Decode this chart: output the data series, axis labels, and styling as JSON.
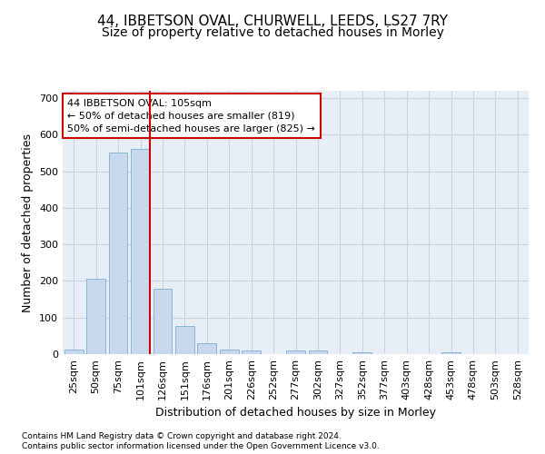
{
  "title1": "44, IBBETSON OVAL, CHURWELL, LEEDS, LS27 7RY",
  "title2": "Size of property relative to detached houses in Morley",
  "xlabel": "Distribution of detached houses by size in Morley",
  "ylabel": "Number of detached properties",
  "categories": [
    "25sqm",
    "50sqm",
    "75sqm",
    "101sqm",
    "126sqm",
    "151sqm",
    "176sqm",
    "201sqm",
    "226sqm",
    "252sqm",
    "277sqm",
    "302sqm",
    "327sqm",
    "352sqm",
    "377sqm",
    "403sqm",
    "428sqm",
    "453sqm",
    "478sqm",
    "503sqm",
    "528sqm"
  ],
  "values": [
    13,
    205,
    550,
    560,
    178,
    78,
    29,
    13,
    10,
    0,
    9,
    9,
    0,
    6,
    0,
    0,
    0,
    5,
    0,
    0,
    0
  ],
  "bar_color": "#c9d9ed",
  "bar_edge_color": "#7bafd4",
  "grid_color": "#c8d4e3",
  "bg_color": "#e8eef5",
  "annotation_line1": "44 IBBETSON OVAL: 105sqm",
  "annotation_line2": "← 50% of detached houses are smaller (819)",
  "annotation_line3": "50% of semi-detached houses are larger (825) →",
  "vline_color": "#cc0000",
  "box_edge_color": "#cc0000",
  "footnote1": "Contains HM Land Registry data © Crown copyright and database right 2024.",
  "footnote2": "Contains public sector information licensed under the Open Government Licence v3.0.",
  "ylim": [
    0,
    720
  ],
  "yticks": [
    0,
    100,
    200,
    300,
    400,
    500,
    600,
    700
  ],
  "title1_fontsize": 11,
  "title2_fontsize": 10,
  "xlabel_fontsize": 9,
  "ylabel_fontsize": 9,
  "ann_fontsize": 8,
  "tick_fontsize": 8
}
